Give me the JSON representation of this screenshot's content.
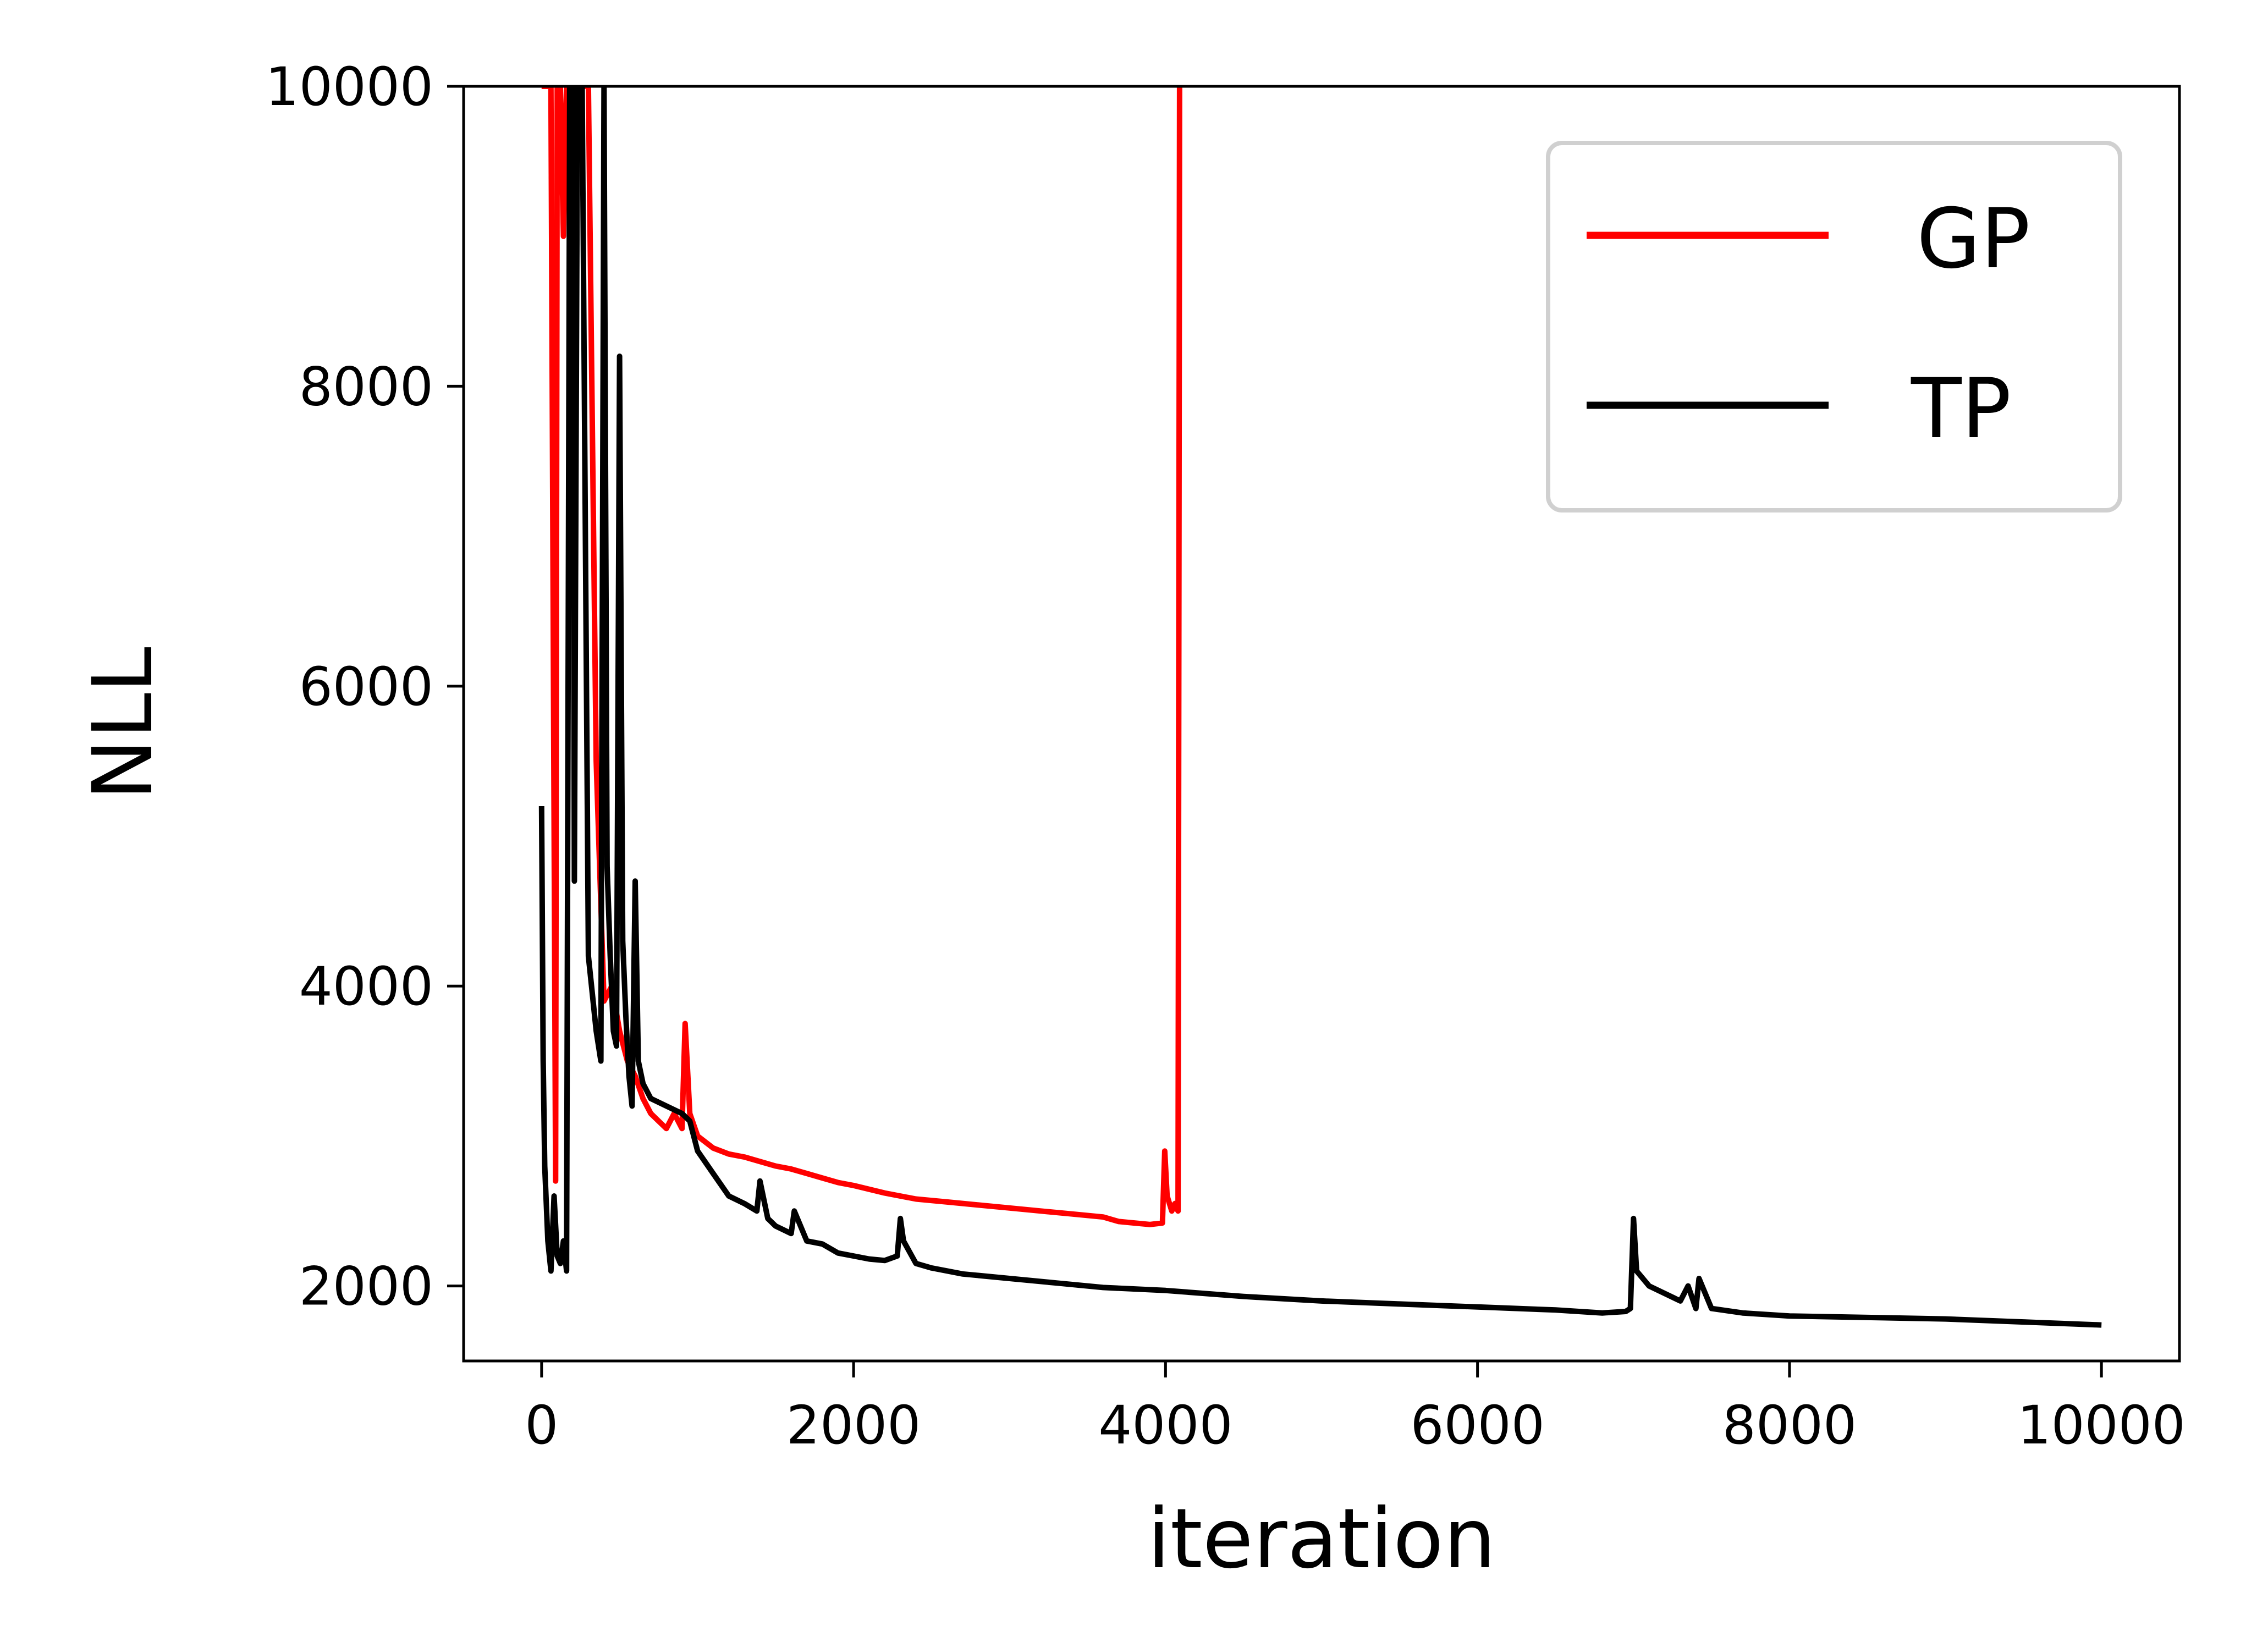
{
  "chart_data": {
    "type": "line",
    "xlabel": "iteration",
    "ylabel": "NLL",
    "xlim": [
      -500,
      10500
    ],
    "ylim": [
      1500,
      10000
    ],
    "xticks": [
      0,
      2000,
      4000,
      6000,
      8000,
      10000
    ],
    "yticks": [
      2000,
      4000,
      6000,
      8000,
      10000
    ],
    "xtick_labels": [
      "0",
      "2000",
      "4000",
      "6000",
      "8000",
      "10000"
    ],
    "ytick_labels": [
      "2000",
      "4000",
      "6000",
      "8000",
      "10000"
    ],
    "grid": false,
    "legend_position": "top-right",
    "series": [
      {
        "name": "GP",
        "color": "#ff0000",
        "x": [
          0,
          30,
          60,
          90,
          100,
          120,
          140,
          160,
          180,
          200,
          250,
          300,
          350,
          400,
          450,
          500,
          550,
          600,
          650,
          700,
          750,
          800,
          850,
          900,
          920,
          950,
          1000,
          1100,
          1200,
          1300,
          1400,
          1500,
          1600,
          1700,
          1800,
          1900,
          2000,
          2200,
          2400,
          2600,
          2800,
          3000,
          3200,
          3400,
          3600,
          3700,
          3800,
          3900,
          3980,
          3995,
          4010,
          4040,
          4060,
          4080,
          4090,
          4100
        ],
        "y": [
          10000,
          10000,
          10000,
          2700,
          10000,
          10000,
          9000,
          10000,
          10000,
          10000,
          10000,
          10000,
          5500,
          3900,
          4000,
          3700,
          3500,
          3400,
          3250,
          3150,
          3100,
          3050,
          3150,
          3050,
          3750,
          3150,
          3000,
          2920,
          2880,
          2860,
          2830,
          2800,
          2780,
          2750,
          2720,
          2690,
          2670,
          2620,
          2580,
          2560,
          2540,
          2520,
          2500,
          2480,
          2460,
          2430,
          2420,
          2410,
          2420,
          2900,
          2600,
          2500,
          2550,
          2500,
          10000,
          10000
        ]
      },
      {
        "name": "TP",
        "color": "#000000",
        "x": [
          0,
          10,
          20,
          40,
          60,
          80,
          100,
          120,
          140,
          160,
          180,
          200,
          210,
          230,
          260,
          300,
          320,
          350,
          380,
          400,
          420,
          440,
          460,
          480,
          500,
          520,
          540,
          560,
          580,
          600,
          620,
          650,
          700,
          800,
          900,
          950,
          1000,
          1100,
          1200,
          1300,
          1380,
          1400,
          1450,
          1500,
          1600,
          1620,
          1700,
          1800,
          1900,
          2000,
          2100,
          2200,
          2280,
          2300,
          2320,
          2400,
          2500,
          2700,
          3000,
          3300,
          3600,
          4000,
          4500,
          5000,
          5500,
          6000,
          6500,
          6800,
          6950,
          6980,
          7000,
          7020,
          7100,
          7200,
          7300,
          7350,
          7400,
          7420,
          7500,
          7700,
          8000,
          8500,
          9000,
          9500,
          10000
        ],
        "y": [
          5200,
          3500,
          2800,
          2300,
          2100,
          2600,
          2200,
          2150,
          2300,
          2100,
          10000,
          10000,
          4700,
          10000,
          10000,
          4200,
          4000,
          3700,
          3500,
          10000,
          4800,
          4200,
          3700,
          3600,
          8200,
          4300,
          3800,
          3400,
          3200,
          4700,
          3500,
          3350,
          3250,
          3200,
          3150,
          3100,
          2900,
          2750,
          2600,
          2550,
          2500,
          2700,
          2450,
          2400,
          2350,
          2500,
          2300,
          2280,
          2220,
          2200,
          2180,
          2170,
          2200,
          2450,
          2300,
          2150,
          2120,
          2080,
          2050,
          2020,
          1990,
          1970,
          1930,
          1900,
          1880,
          1860,
          1840,
          1820,
          1830,
          1850,
          2450,
          2100,
          2000,
          1950,
          1900,
          2000,
          1850,
          2050,
          1850,
          1820,
          1800,
          1790,
          1780,
          1760,
          1740
        ]
      }
    ]
  }
}
